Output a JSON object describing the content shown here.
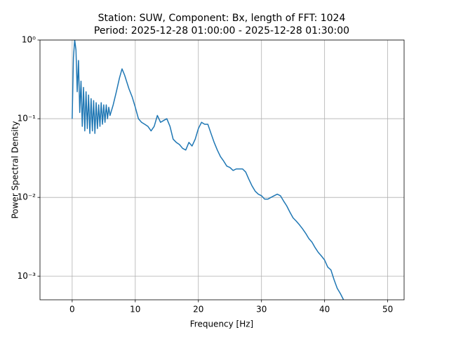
{
  "chart_data": {
    "type": "line",
    "title": "Station: SUW, Component: Bx, length of FFT: 1024",
    "subtitle": "Period: 2025-12-28 01:00:00 - 2025-12-28 01:30:00",
    "xlabel": "Frequency [Hz]",
    "ylabel": "Power Spectral Density",
    "x": [
      0,
      0.2,
      0.4,
      0.6,
      0.8,
      1.0,
      1.2,
      1.4,
      1.6,
      1.8,
      2.0,
      2.2,
      2.4,
      2.6,
      2.8,
      3.0,
      3.2,
      3.4,
      3.6,
      3.8,
      4.0,
      4.2,
      4.4,
      4.6,
      4.8,
      5.0,
      5.2,
      5.4,
      5.6,
      5.8,
      6.0,
      6.5,
      7.0,
      7.5,
      7.9,
      8.3,
      9,
      9.5,
      10,
      10.5,
      11,
      11.5,
      12,
      12.5,
      13,
      13.5,
      14,
      14.5,
      15,
      15.5,
      16,
      16.5,
      17,
      17.5,
      18,
      18.5,
      19,
      19.5,
      20,
      20.5,
      21,
      21.5,
      22,
      22.5,
      23,
      23.5,
      24,
      24.5,
      25,
      25.5,
      26,
      26.5,
      27,
      27.5,
      28,
      28.5,
      29,
      29.5,
      30,
      30.5,
      31,
      31.5,
      32,
      32.5,
      33,
      33.5,
      34,
      34.5,
      35,
      35.5,
      36,
      36.5,
      37,
      37.5,
      38,
      38.5,
      39,
      39.5,
      40,
      40.5,
      41,
      41.5,
      42,
      42.5,
      43
    ],
    "series": [
      {
        "name": "Bx",
        "color": "#1f77b4",
        "values": [
          0.1,
          0.6,
          1.0,
          0.75,
          0.22,
          0.55,
          0.12,
          0.3,
          0.08,
          0.25,
          0.07,
          0.22,
          0.075,
          0.2,
          0.065,
          0.18,
          0.07,
          0.17,
          0.065,
          0.16,
          0.075,
          0.15,
          0.08,
          0.16,
          0.085,
          0.15,
          0.09,
          0.15,
          0.1,
          0.14,
          0.11,
          0.15,
          0.22,
          0.33,
          0.43,
          0.36,
          0.24,
          0.19,
          0.14,
          0.1,
          0.09,
          0.085,
          0.08,
          0.07,
          0.08,
          0.11,
          0.09,
          0.095,
          0.1,
          0.08,
          0.055,
          0.05,
          0.047,
          0.042,
          0.04,
          0.05,
          0.045,
          0.055,
          0.075,
          0.09,
          0.085,
          0.085,
          0.065,
          0.05,
          0.04,
          0.033,
          0.029,
          0.025,
          0.024,
          0.022,
          0.023,
          0.023,
          0.023,
          0.021,
          0.017,
          0.014,
          0.012,
          0.011,
          0.0105,
          0.0095,
          0.0095,
          0.01,
          0.0105,
          0.011,
          0.0105,
          0.009,
          0.0078,
          0.0065,
          0.0055,
          0.005,
          0.0045,
          0.004,
          0.0035,
          0.003,
          0.0027,
          0.0023,
          0.002,
          0.0018,
          0.0016,
          0.0013,
          0.0012,
          0.0009,
          0.0007,
          0.0006,
          0.0005
        ]
      }
    ],
    "xlim": [
      -5.1,
      52.6
    ],
    "xticks": [
      0,
      10,
      20,
      30,
      40,
      50
    ],
    "ylim": [
      0.0005,
      1
    ],
    "yscale": "log",
    "yticks": [
      {
        "value": 1,
        "label": "10⁰"
      },
      {
        "value": 0.1,
        "label": "10⁻¹"
      },
      {
        "value": 0.01,
        "label": "10⁻²"
      },
      {
        "value": 0.001,
        "label": "10⁻³"
      }
    ],
    "grid": true
  }
}
